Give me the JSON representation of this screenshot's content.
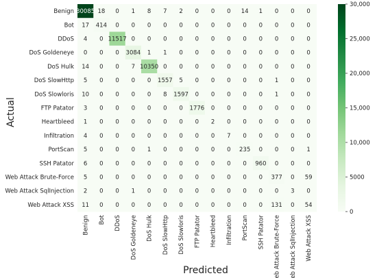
{
  "chart_data": {
    "type": "heatmap",
    "title": "",
    "xlabel": "Predicted",
    "ylabel": "Actual",
    "row_labels": [
      "Benign",
      "Bot",
      "DDoS",
      "DoS Goldeneye",
      "DoS Hulk",
      "DoS SlowHttp",
      "DoS Slowloris",
      "FTP Patator",
      "Heartbleed",
      "Infiltration",
      "PortScan",
      "SSH Patator",
      "Web Attack Brute-Force",
      "Web Attack SqlInjection",
      "Web Attack XSS"
    ],
    "col_labels": [
      "Benign",
      "Bot",
      "DDoS",
      "DoS Goldeneye",
      "DoS Hulk",
      "DoS SlowHttp",
      "DoS Slowloris",
      "FTP Patator",
      "Heartbleed",
      "Infiltration",
      "PortScan",
      "SSH Patator",
      "Web Attack Brute-Force",
      "Web Attack SqlInjection",
      "Web Attack XSS"
    ],
    "values": [
      [
        30085,
        18,
        0,
        1,
        8,
        7,
        2,
        0,
        0,
        0,
        14,
        1,
        0,
        0,
        0
      ],
      [
        17,
        414,
        0,
        0,
        0,
        0,
        0,
        0,
        0,
        0,
        0,
        0,
        0,
        0,
        0
      ],
      [
        4,
        0,
        11517,
        0,
        0,
        0,
        0,
        0,
        0,
        0,
        0,
        0,
        0,
        0,
        0
      ],
      [
        0,
        0,
        0,
        3084,
        1,
        1,
        0,
        0,
        0,
        0,
        0,
        0,
        0,
        0,
        0
      ],
      [
        14,
        0,
        0,
        7,
        10350,
        0,
        0,
        0,
        0,
        0,
        0,
        0,
        0,
        0,
        0
      ],
      [
        5,
        0,
        0,
        0,
        0,
        1557,
        5,
        0,
        0,
        0,
        0,
        0,
        1,
        0,
        0
      ],
      [
        10,
        0,
        0,
        0,
        0,
        8,
        1597,
        0,
        0,
        0,
        0,
        0,
        1,
        0,
        0
      ],
      [
        3,
        0,
        0,
        0,
        0,
        0,
        0,
        1776,
        0,
        0,
        0,
        0,
        0,
        0,
        0
      ],
      [
        1,
        0,
        0,
        0,
        0,
        0,
        0,
        0,
        2,
        0,
        0,
        0,
        0,
        0,
        0
      ],
      [
        4,
        0,
        0,
        0,
        0,
        0,
        0,
        0,
        0,
        7,
        0,
        0,
        0,
        0,
        0
      ],
      [
        5,
        0,
        0,
        0,
        1,
        0,
        0,
        0,
        0,
        0,
        235,
        0,
        0,
        0,
        1
      ],
      [
        6,
        0,
        0,
        0,
        0,
        0,
        0,
        0,
        0,
        0,
        0,
        960,
        0,
        0,
        0
      ],
      [
        5,
        0,
        0,
        0,
        0,
        0,
        0,
        0,
        0,
        0,
        0,
        0,
        377,
        0,
        59
      ],
      [
        2,
        0,
        0,
        1,
        0,
        0,
        0,
        0,
        0,
        0,
        0,
        0,
        0,
        3,
        0
      ],
      [
        11,
        0,
        0,
        0,
        0,
        0,
        0,
        0,
        0,
        0,
        0,
        0,
        131,
        0,
        54
      ]
    ],
    "colorbar": {
      "range": [
        0,
        30000
      ],
      "ticks": [
        0,
        5000,
        10000,
        15000,
        20000,
        25000,
        30000
      ],
      "tick_labels": [
        "0",
        "5000",
        "10,000",
        "15,000",
        "20,000",
        "25,000",
        "30,000"
      ],
      "color_low": "#f7fcf5",
      "color_high": "#00441b"
    },
    "grid": false,
    "legend": "colorbar-right"
  }
}
